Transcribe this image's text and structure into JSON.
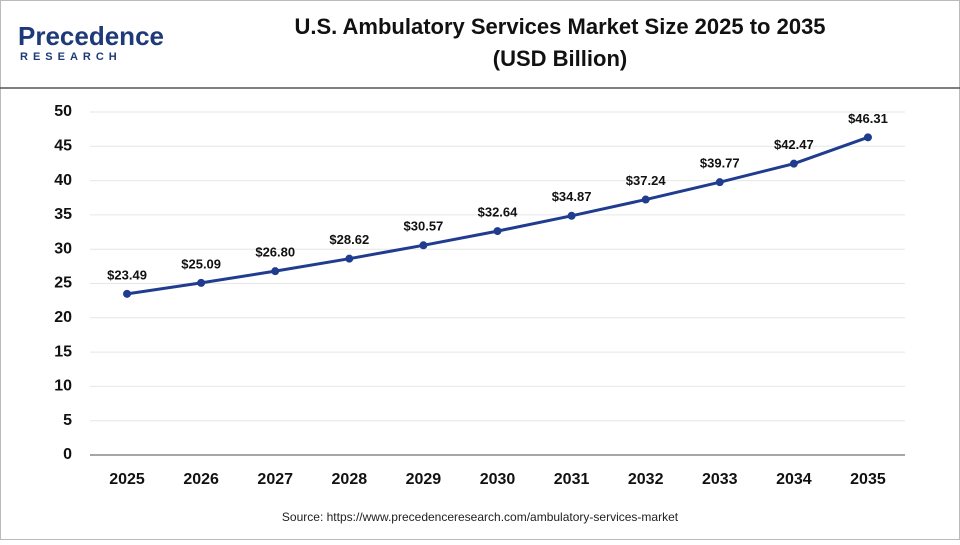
{
  "logo": {
    "name": "Precedence",
    "tagline": "RESEARCH"
  },
  "chart_data": {
    "type": "line",
    "title": "U.S. Ambulatory Services Market Size 2025 to 2035",
    "subtitle": "(USD Billion)",
    "categories": [
      "2025",
      "2026",
      "2027",
      "2028",
      "2029",
      "2030",
      "2031",
      "2032",
      "2033",
      "2034",
      "2035"
    ],
    "values": [
      23.49,
      25.09,
      26.8,
      28.62,
      30.57,
      32.64,
      34.87,
      37.24,
      39.77,
      42.47,
      46.31
    ],
    "value_labels": [
      "$23.49",
      "$25.09",
      "$26.80",
      "$28.62",
      "$30.57",
      "$32.64",
      "$34.87",
      "$37.24",
      "$39.77",
      "$42.47",
      "$46.31"
    ],
    "color": "#1f3c8f",
    "ylim": [
      0,
      50
    ],
    "yticks": [
      0,
      5,
      10,
      15,
      20,
      25,
      30,
      35,
      40,
      45,
      50
    ],
    "grid": true,
    "source": "Source: https://www.precedenceresearch.com/ambulatory-services-market"
  }
}
